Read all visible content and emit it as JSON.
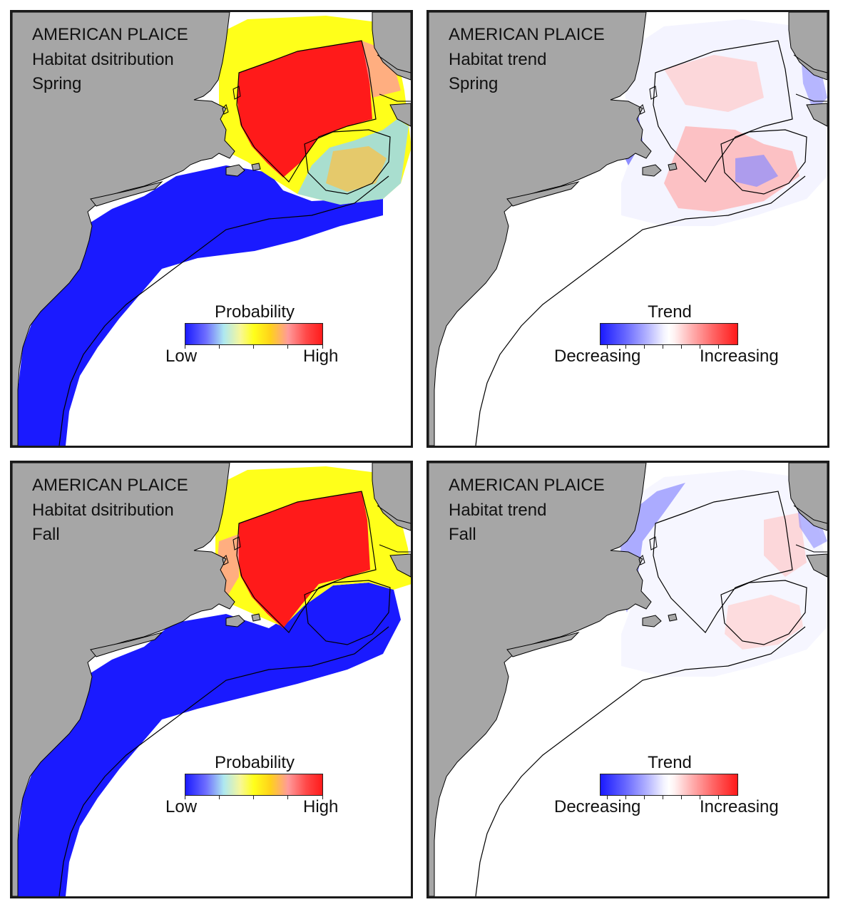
{
  "panels": [
    {
      "species": "AMERICAN PLAICE",
      "layer": "Habitat dsitribution",
      "season": "Spring",
      "legend": {
        "title": "Probability",
        "low": "Low",
        "high": "High",
        "scale": [
          "#1a1aff",
          "#6e6eff",
          "#aee8f0",
          "#f7f79a",
          "#ffff1a",
          "#ffd21a",
          "#ff9a9a",
          "#ff4a4a",
          "#ff1a1a"
        ]
      }
    },
    {
      "species": "AMERICAN PLAICE",
      "layer": "Habitat trend",
      "season": "Spring",
      "legend": {
        "title": "Trend",
        "low": "Decreasing",
        "high": "Increasing",
        "scale": [
          "#1a1aff",
          "#6666ff",
          "#b3b3ff",
          "#f2f2ff",
          "#ffffff",
          "#fff2f2",
          "#ffb3b3",
          "#ff6666",
          "#ff1a1a"
        ]
      }
    },
    {
      "species": "AMERICAN PLAICE",
      "layer": "Habitat dsitribution",
      "season": "Fall",
      "legend": {
        "title": "Probability",
        "low": "Low",
        "high": "High",
        "scale": [
          "#1a1aff",
          "#6e6eff",
          "#aee8f0",
          "#f7f79a",
          "#ffff1a",
          "#ffd21a",
          "#ff9a9a",
          "#ff4a4a",
          "#ff1a1a"
        ]
      }
    },
    {
      "species": "AMERICAN PLAICE",
      "layer": "Habitat trend",
      "season": "Fall",
      "legend": {
        "title": "Trend",
        "low": "Decreasing",
        "high": "Increasing",
        "scale": [
          "#1a1aff",
          "#6666ff",
          "#b3b3ff",
          "#f2f2ff",
          "#ffffff",
          "#fff2f2",
          "#ffb3b3",
          "#ff6666",
          "#ff1a1a"
        ]
      }
    }
  ],
  "colors": {
    "land": "#a6a6a6",
    "water": "#ffffff",
    "coastline": "#000000"
  }
}
